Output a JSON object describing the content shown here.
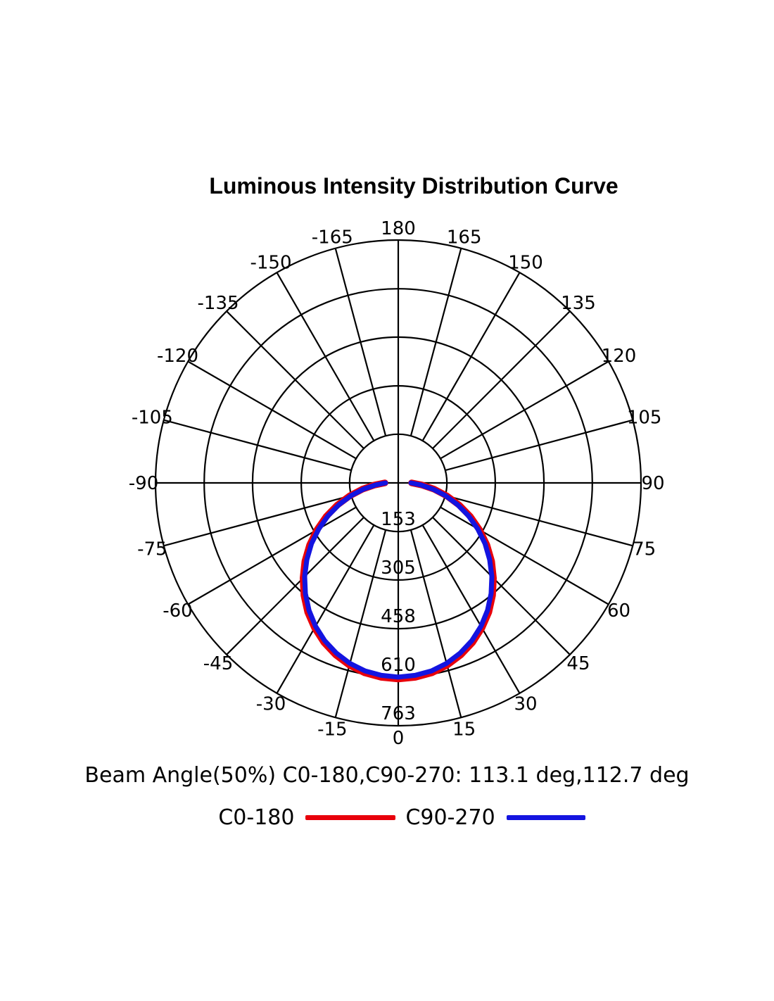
{
  "title": "Luminous Intensity Distribution Curve",
  "beam_angle_text": "Beam Angle(50%) C0-180,C90-270: 113.1 deg,112.7 deg",
  "legend": {
    "items": [
      {
        "label": "C0-180",
        "color": "#e8000b"
      },
      {
        "label": "C90-270",
        "color": "#1414e0"
      }
    ]
  },
  "chart_data": {
    "type": "line",
    "coordinate_system": "polar",
    "title": "Luminous Intensity Distribution Curve",
    "orientation": "0 deg at bottom, 180 deg at top, positive angles right, negative angles left",
    "grid": true,
    "legend_position": "bottom",
    "angle_tick_labels_deg": [
      -165,
      -150,
      -135,
      -120,
      -105,
      -90,
      -75,
      -60,
      -45,
      -30,
      -15,
      0,
      15,
      30,
      45,
      60,
      75,
      90,
      105,
      120,
      135,
      150,
      165,
      180
    ],
    "radial_tick_labels": [
      153,
      305,
      458,
      610,
      763
    ],
    "r_axis_max": 763,
    "angles_deg": [
      -90,
      -85,
      -80,
      -75,
      -70,
      -65,
      -60,
      -55,
      -50,
      -45,
      -40,
      -35,
      -30,
      -25,
      -20,
      -15,
      -10,
      -5,
      0,
      5,
      10,
      15,
      20,
      25,
      30,
      35,
      40,
      45,
      50,
      55,
      60,
      65,
      70,
      75,
      80,
      85,
      90
    ],
    "series": [
      {
        "name": "C0-180",
        "color": "#e8000b",
        "peak_intensity": 616,
        "values": [
          42,
          74,
          115,
          158,
          204,
          250,
          295,
          340,
          383,
          423,
          461,
          496,
          526,
          553,
          575,
          593,
          606,
          613,
          616,
          613,
          606,
          593,
          575,
          553,
          526,
          496,
          461,
          423,
          383,
          340,
          295,
          250,
          204,
          158,
          115,
          74,
          42
        ]
      },
      {
        "name": "C90-270",
        "color": "#1414e0",
        "peak_intensity": 610,
        "values": [
          40,
          71,
          110,
          153,
          197,
          243,
          288,
          333,
          375,
          416,
          454,
          489,
          520,
          547,
          569,
          587,
          600,
          607,
          610,
          607,
          600,
          587,
          569,
          547,
          520,
          489,
          454,
          416,
          375,
          333,
          288,
          243,
          197,
          153,
          110,
          71,
          40
        ]
      }
    ],
    "beam_angle_50pct_deg": {
      "C0-180": 113.1,
      "C90-270": 112.7
    }
  }
}
